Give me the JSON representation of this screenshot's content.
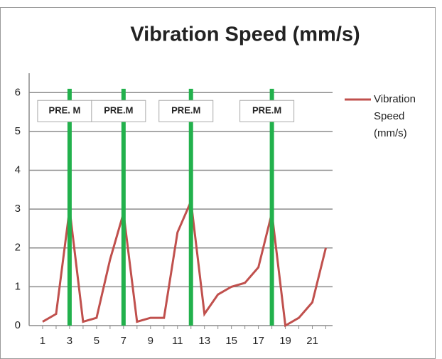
{
  "chart_data": {
    "type": "line",
    "title": "Vibration Speed (mm/s)",
    "x": [
      1,
      2,
      3,
      4,
      5,
      6,
      7,
      8,
      9,
      10,
      11,
      12,
      13,
      14,
      15,
      16,
      17,
      18,
      19,
      20,
      21,
      22
    ],
    "series": [
      {
        "name": "Vibration Speed (mm/s)",
        "color": "#c0504d",
        "values": [
          0.1,
          0.3,
          3.0,
          0.1,
          0.2,
          1.7,
          2.9,
          0.1,
          0.2,
          0.2,
          2.4,
          3.2,
          0.3,
          0.8,
          1.0,
          1.1,
          1.5,
          2.9,
          0.0,
          0.2,
          0.6,
          2.0
        ]
      }
    ],
    "xlim": [
      0,
      22.5
    ],
    "xticks": [
      1,
      3,
      5,
      7,
      9,
      11,
      13,
      15,
      17,
      19,
      21
    ],
    "ylim": [
      0,
      6.5
    ],
    "yticks": [
      0,
      1,
      2,
      3,
      4,
      5,
      6
    ],
    "grid": true,
    "legend": "right",
    "annotations": [
      {
        "x": 3,
        "label": "PRE. M",
        "color": "#22b14c"
      },
      {
        "x": 7,
        "label": "PRE.M",
        "color": "#22b14c"
      },
      {
        "x": 12,
        "label": "PRE.M",
        "color": "#22b14c"
      },
      {
        "x": 18,
        "label": "PRE.M",
        "color": "#22b14c"
      }
    ]
  }
}
